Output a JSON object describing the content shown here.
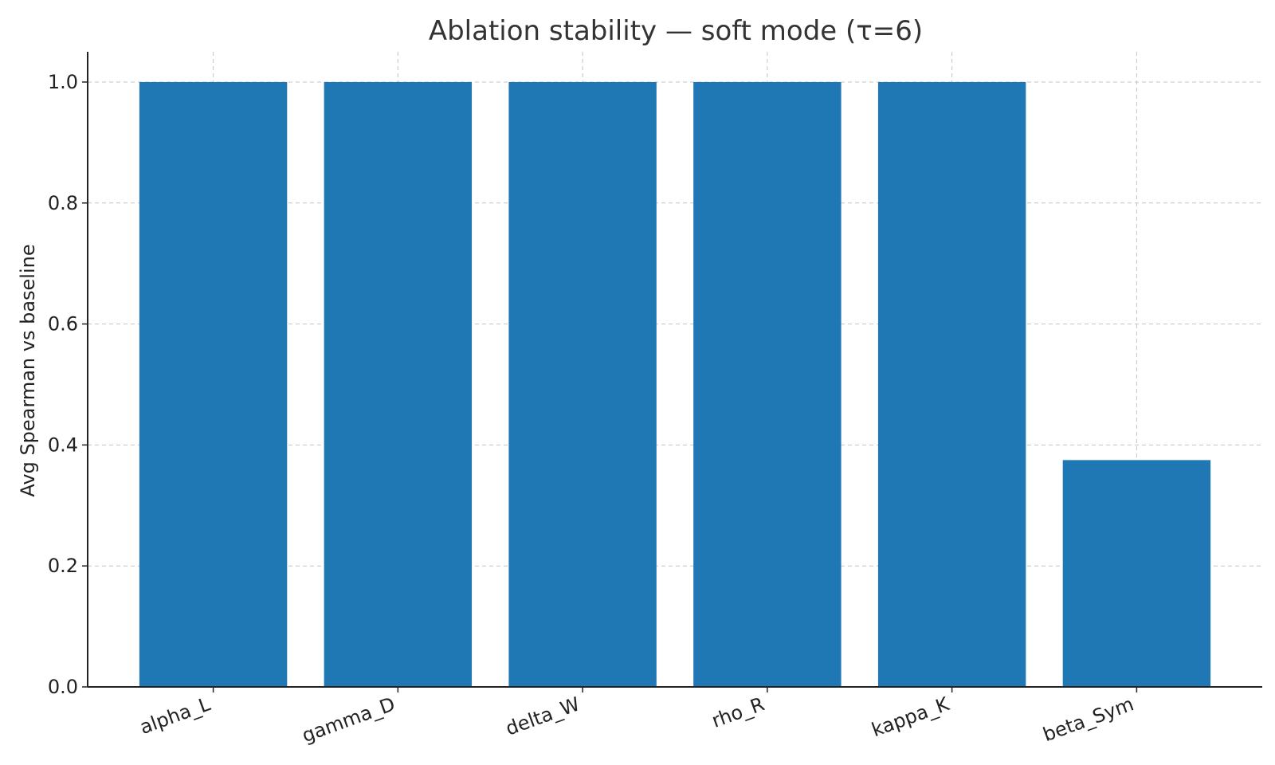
{
  "chart_data": {
    "type": "bar",
    "title": "Ablation stability — soft mode (τ=6)",
    "xlabel": "",
    "ylabel": "Avg Spearman vs baseline",
    "categories": [
      "alpha_L",
      "gamma_D",
      "delta_W",
      "rho_R",
      "kappa_K",
      "beta_Sym"
    ],
    "values": [
      1.0,
      1.0,
      1.0,
      1.0,
      1.0,
      0.375
    ],
    "ylim": [
      0,
      1.05
    ],
    "yticks": [
      "0.0",
      "0.2",
      "0.4",
      "0.6",
      "0.8",
      "1.0"
    ],
    "grid": true,
    "legend": "none",
    "bar_color": "#1f77b4"
  }
}
